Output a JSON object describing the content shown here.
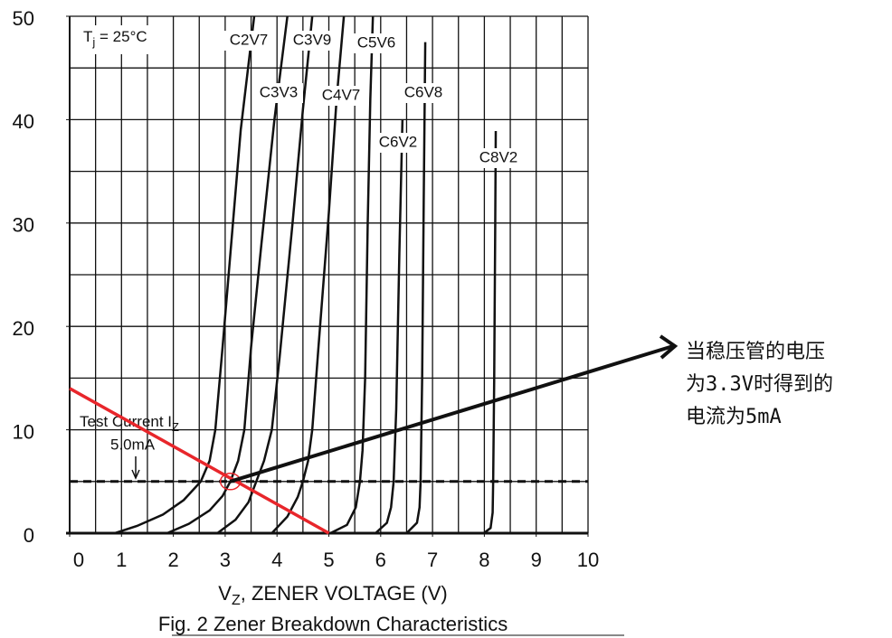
{
  "chart_data": {
    "type": "line",
    "xlim": [
      0,
      10
    ],
    "ylim": [
      0,
      50
    ],
    "xticks": [
      0,
      1,
      2,
      3,
      4,
      5,
      6,
      7,
      8,
      9,
      10
    ],
    "yticks": [
      0,
      10,
      20,
      30,
      40,
      50
    ],
    "grid": true,
    "grid_x_step": 0.5,
    "grid_y_step": 5,
    "xlabel": {
      "main": "V",
      "sub": "Z",
      "rest": ", ZENER VOLTAGE (V)"
    },
    "caption": "Fig. 2  Zener Breakdown Characteristics",
    "tj_label": {
      "main": "T",
      "sub": "j",
      "rest": " = 25°C"
    },
    "test_current_label": {
      "main": "Test Current I",
      "sub": "Z"
    },
    "test_current_value_label": "5.0mA",
    "test_current": 5,
    "series": [
      {
        "name": "C2V7",
        "color": "#111111",
        "x": [
          0.87,
          1.3,
          1.8,
          2.2,
          2.53,
          2.7,
          2.81,
          2.95,
          3.1,
          3.3,
          3.56
        ],
        "values": [
          0,
          0.7,
          1.8,
          3.2,
          5,
          7,
          10,
          18,
          27,
          39,
          50
        ]
      },
      {
        "name": "C3V3",
        "color": "#111111",
        "x": [
          1.88,
          2.3,
          2.7,
          2.95,
          3.1,
          3.25,
          3.37,
          3.5,
          3.7,
          3.95,
          4.2
        ],
        "values": [
          0,
          0.9,
          2.2,
          3.6,
          5,
          7,
          10,
          18,
          28,
          40,
          50
        ]
      },
      {
        "name": "C3V9",
        "color": "#111111",
        "x": [
          2.85,
          3.2,
          3.45,
          3.6,
          3.75,
          3.9,
          4.05,
          4.3,
          4.5,
          4.68
        ],
        "values": [
          0,
          1.3,
          3,
          5,
          7,
          10,
          17,
          30,
          41,
          50
        ]
      },
      {
        "name": "C4V7",
        "color": "#111111",
        "x": [
          3.9,
          4.2,
          4.4,
          4.5,
          4.6,
          4.68,
          4.8,
          5.0,
          5.15,
          5.29
        ],
        "values": [
          0,
          1.6,
          3.5,
          5,
          7,
          10,
          18,
          31,
          42,
          50
        ]
      },
      {
        "name": "C5V6",
        "color": "#111111",
        "x": [
          5.03,
          5.35,
          5.52,
          5.6,
          5.65,
          5.7,
          5.75,
          5.8,
          5.85
        ],
        "values": [
          0,
          0.8,
          2.5,
          5,
          8,
          15,
          30,
          42,
          50
        ]
      },
      {
        "name": "C6V2",
        "color": "#111111",
        "x": [
          5.9,
          6.12,
          6.2,
          6.25,
          6.3,
          6.36,
          6.42
        ],
        "values": [
          0,
          1,
          2.5,
          5,
          12,
          27,
          40
        ]
      },
      {
        "name": "C6V8",
        "color": "#111111",
        "x": [
          6.5,
          6.7,
          6.75,
          6.77,
          6.8,
          6.83,
          6.86
        ],
        "values": [
          0,
          1,
          2.5,
          5,
          15,
          32,
          47.5
        ]
      },
      {
        "name": "C8V2",
        "color": "#111111",
        "x": [
          7.99,
          8.12,
          8.16,
          8.17,
          8.19,
          8.21,
          8.22
        ],
        "values": [
          0,
          0.5,
          2,
          5,
          15,
          30,
          38.9
        ]
      }
    ],
    "load_line": {
      "color": "#e8262b",
      "x": [
        0,
        5
      ],
      "values": [
        14,
        0
      ]
    },
    "operating_point": {
      "x": 3.1,
      "y": 5,
      "color": "#e8262b"
    },
    "note_lines": [
      "当稳压管的电压",
      "为3.3V时得到的",
      "电流为5mA"
    ]
  }
}
